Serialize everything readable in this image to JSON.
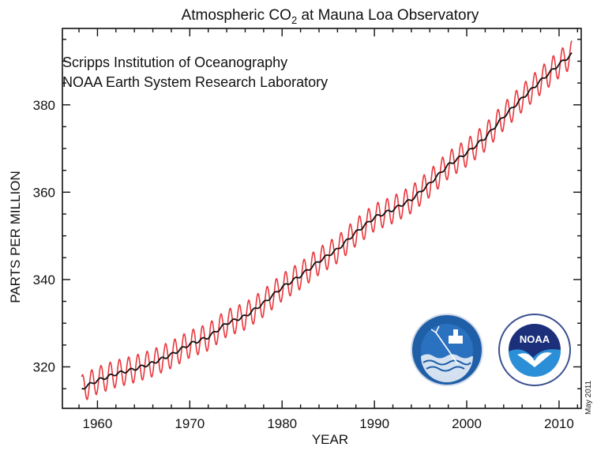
{
  "chart_data": {
    "type": "line",
    "title_prefix": "Atmospheric CO",
    "title_sub": "2",
    "title_suffix": " at Mauna Loa Observatory",
    "xlabel": "YEAR",
    "ylabel": "PARTS PER MILLION",
    "xlim": [
      1956.2,
      2012.4
    ],
    "ylim": [
      310.5,
      397.5
    ],
    "x_ticks": [
      1960,
      1970,
      1980,
      1990,
      2000,
      2010
    ],
    "y_ticks": [
      320,
      340,
      360,
      380
    ],
    "annotations": [
      "Scripps Institution of Oceanography",
      "NOAA Earth System Research Laboratory"
    ],
    "date_stamp": "May 2011",
    "logos": [
      "SIO-logo",
      "NOAA-logo"
    ],
    "logo_text": {
      "noaa": "NOAA"
    },
    "colors": {
      "monthly": "#e8383d",
      "trend": "#111111"
    },
    "series": [
      {
        "style": "seasonal-monthly",
        "seasonal_amplitude_ppm": 3.1,
        "x": [
          1958.3,
          1960,
          1962,
          1964,
          1966,
          1968,
          1970,
          1972,
          1974,
          1976,
          1978,
          1980,
          1982,
          1984,
          1986,
          1988,
          1990,
          1992,
          1994,
          1996,
          1998,
          2000,
          2002,
          2004,
          2006,
          2008,
          2010,
          2011.4
        ],
        "values": [
          315.0,
          316.9,
          318.4,
          319.5,
          320.9,
          322.8,
          325.2,
          326.8,
          330.0,
          331.6,
          334.6,
          338.2,
          340.9,
          344.2,
          346.9,
          350.8,
          354.2,
          356.0,
          358.3,
          362.0,
          366.2,
          369.0,
          372.5,
          377.3,
          381.5,
          385.5,
          389.3,
          391.6
        ]
      },
      {
        "style": "trend",
        "x": [
          1958.3,
          1960,
          1962,
          1964,
          1966,
          1968,
          1970,
          1972,
          1974,
          1976,
          1978,
          1980,
          1982,
          1984,
          1986,
          1988,
          1990,
          1992,
          1994,
          1996,
          1998,
          2000,
          2002,
          2004,
          2006,
          2008,
          2010,
          2011.4
        ],
        "values": [
          315.0,
          316.9,
          318.4,
          319.5,
          320.9,
          322.8,
          325.2,
          326.8,
          330.0,
          331.6,
          334.6,
          338.2,
          340.9,
          344.2,
          346.9,
          350.8,
          354.2,
          356.0,
          358.3,
          362.0,
          366.2,
          369.0,
          372.5,
          377.3,
          381.5,
          385.5,
          389.3,
          391.6
        ]
      }
    ]
  }
}
